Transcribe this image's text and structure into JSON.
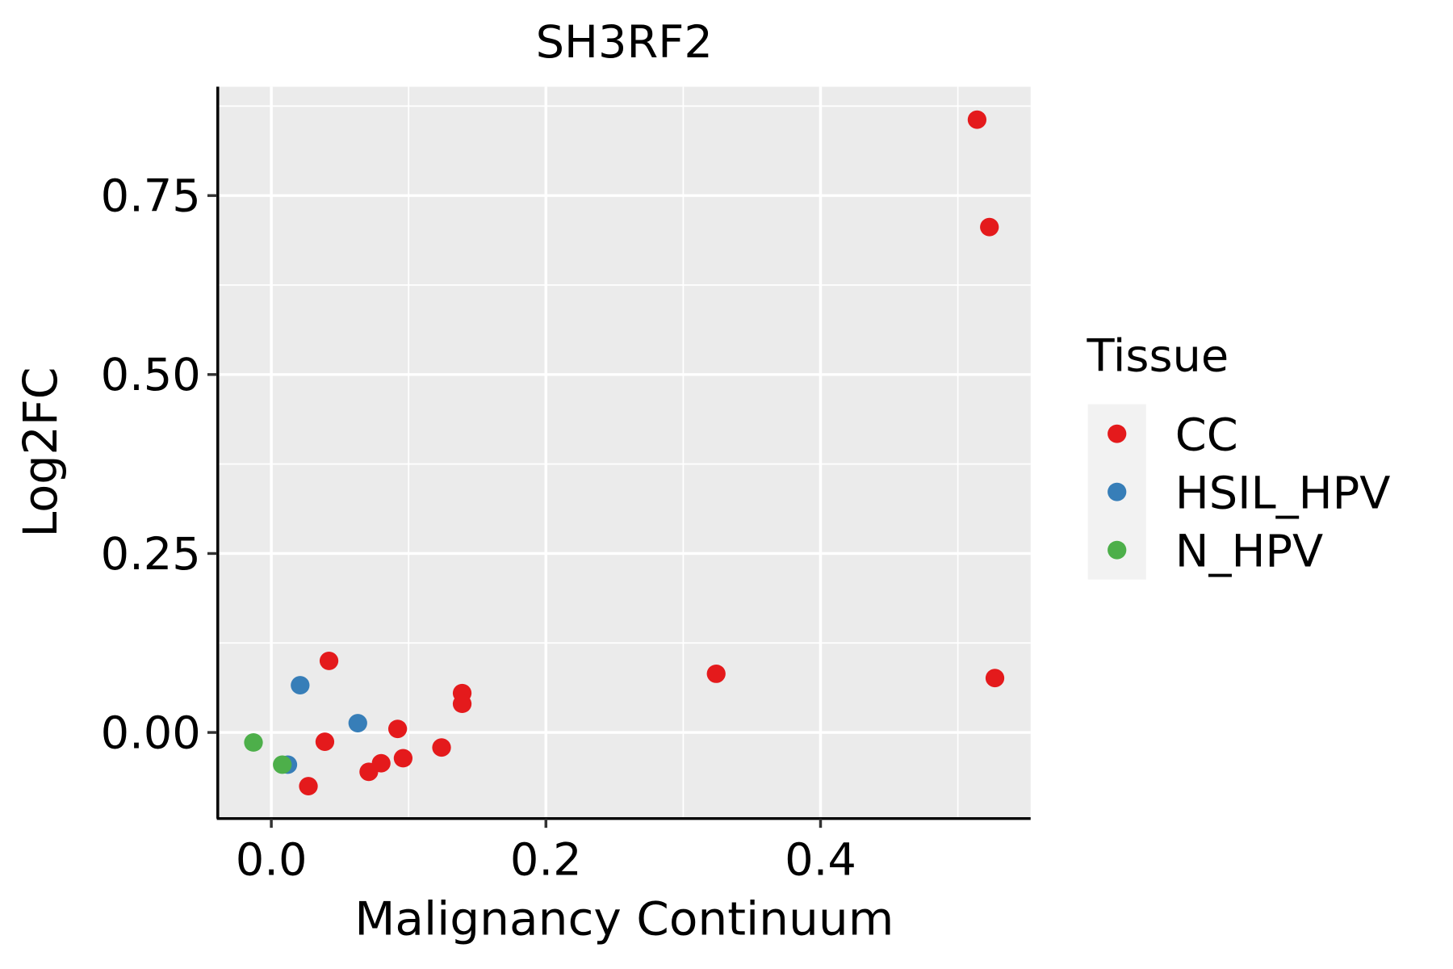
{
  "chart_data": {
    "type": "scatter",
    "title": "SH3RF2",
    "xlabel": "Malignancy Continuum",
    "ylabel": "Log2FC",
    "xlim": [
      -0.039,
      0.553
    ],
    "ylim": [
      -0.119,
      0.902
    ],
    "xticks": [
      0.0,
      0.2,
      0.4
    ],
    "xtick_labels": [
      "0.0",
      "0.2",
      "0.4"
    ],
    "yticks": [
      0.0,
      0.25,
      0.5,
      0.75
    ],
    "ytick_labels": [
      "0.00",
      "0.25",
      "0.50",
      "0.75"
    ],
    "grid": true,
    "legend": {
      "title": "Tissue",
      "placement": "right",
      "entries": [
        {
          "label": "CC",
          "color": "#E41A1C"
        },
        {
          "label": "HSIL_HPV",
          "color": "#377EB8"
        },
        {
          "label": "N_HPV",
          "color": "#4DAF4A"
        }
      ]
    },
    "points": [
      {
        "x": 0.514,
        "y": 0.856,
        "group": "CC"
      },
      {
        "x": 0.523,
        "y": 0.706,
        "group": "CC"
      },
      {
        "x": 0.527,
        "y": 0.076,
        "group": "CC"
      },
      {
        "x": 0.324,
        "y": 0.082,
        "group": "CC"
      },
      {
        "x": 0.042,
        "y": 0.1,
        "group": "CC"
      },
      {
        "x": 0.139,
        "y": 0.055,
        "group": "CC"
      },
      {
        "x": 0.139,
        "y": 0.04,
        "group": "CC"
      },
      {
        "x": 0.092,
        "y": 0.005,
        "group": "CC"
      },
      {
        "x": 0.039,
        "y": -0.013,
        "group": "CC"
      },
      {
        "x": 0.124,
        "y": -0.021,
        "group": "CC"
      },
      {
        "x": 0.096,
        "y": -0.036,
        "group": "CC"
      },
      {
        "x": 0.08,
        "y": -0.043,
        "group": "CC"
      },
      {
        "x": 0.071,
        "y": -0.055,
        "group": "CC"
      },
      {
        "x": 0.027,
        "y": -0.075,
        "group": "CC"
      },
      {
        "x": 0.021,
        "y": 0.066,
        "group": "HSIL_HPV"
      },
      {
        "x": 0.063,
        "y": 0.013,
        "group": "HSIL_HPV"
      },
      {
        "x": 0.012,
        "y": -0.045,
        "group": "HSIL_HPV"
      },
      {
        "x": 0.008,
        "y": -0.045,
        "group": "N_HPV"
      },
      {
        "x": -0.013,
        "y": -0.014,
        "group": "N_HPV"
      }
    ]
  }
}
